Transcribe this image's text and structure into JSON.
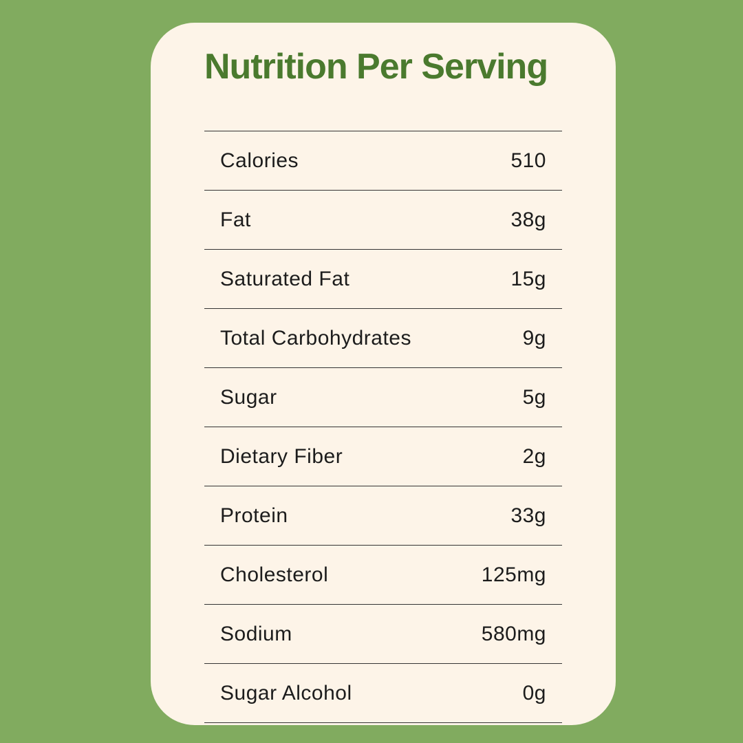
{
  "card": {
    "title": "Nutrition Per Serving",
    "rows": [
      {
        "label": "Calories",
        "value": "510"
      },
      {
        "label": "Fat",
        "value": "38g"
      },
      {
        "label": "Saturated Fat",
        "value": "15g"
      },
      {
        "label": "Total Carbohydrates",
        "value": "9g"
      },
      {
        "label": "Sugar",
        "value": "5g"
      },
      {
        "label": "Dietary Fiber",
        "value": "2g"
      },
      {
        "label": "Protein",
        "value": "33g"
      },
      {
        "label": "Cholesterol",
        "value": "125mg"
      },
      {
        "label": "Sodium",
        "value": "580mg"
      },
      {
        "label": "Sugar Alcohol",
        "value": "0g"
      }
    ]
  },
  "colors": {
    "page_background": "#81AB5F",
    "card_background": "#FDF4E8",
    "title_text": "#4A7A2E",
    "row_text": "#1C1C1C",
    "divider": "#333333"
  }
}
